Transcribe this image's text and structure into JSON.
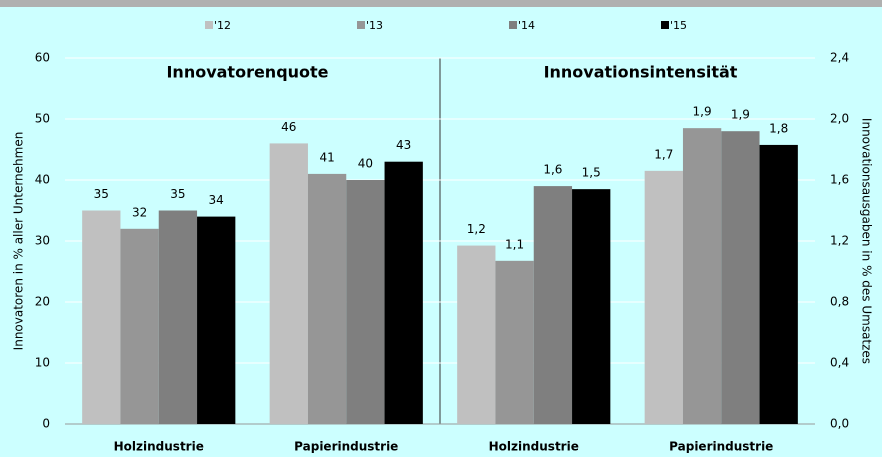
{
  "chart_data": [
    {
      "type": "bar",
      "title": "Innovatorenquote",
      "ylabel": "Innovatoren in % aller Unternehmen",
      "categories": [
        "Holzindustrie",
        "Papierindustrie"
      ],
      "ylim": [
        0,
        60
      ],
      "yticks": [
        0,
        10,
        20,
        30,
        40,
        50,
        60
      ],
      "grid": true,
      "series": [
        {
          "name": "'12",
          "color": "#c0c0c0",
          "values": [
            35,
            46
          ]
        },
        {
          "name": "'13",
          "color": "#969696",
          "values": [
            32,
            41
          ]
        },
        {
          "name": "'14",
          "color": "#7f7f7f",
          "values": [
            35,
            40
          ]
        },
        {
          "name": "'15",
          "color": "#000000",
          "values": [
            34,
            43
          ]
        }
      ]
    },
    {
      "type": "bar",
      "title": "Innovationsintensität",
      "ylabel": "Innovationsausgaben in % des Umsatzes",
      "categories": [
        "Holzindustrie",
        "Papierindustrie"
      ],
      "ylim": [
        0,
        2.4
      ],
      "yticks": [
        {
          "value": 0,
          "label": "0,0"
        },
        {
          "value": 0.4,
          "label": "0,4"
        },
        {
          "value": 0.8,
          "label": "0,8"
        },
        {
          "value": 1.2,
          "label": "1,2"
        },
        {
          "value": 1.6,
          "label": "1,6"
        },
        {
          "value": 2.0,
          "label": "2,0"
        },
        {
          "value": 2.4,
          "label": "2,4"
        }
      ],
      "grid": true,
      "series": [
        {
          "color": "#c0c0c0",
          "values": [
            1.17,
            1.66
          ],
          "value_labels": [
            "1,2",
            "1,7"
          ]
        },
        {
          "color": "#969696",
          "values": [
            1.07,
            1.94
          ],
          "value_labels": [
            "1,1",
            "1,9"
          ]
        },
        {
          "color": "#7f7f7f",
          "values": [
            1.56,
            1.92
          ],
          "value_labels": [
            "1,6",
            "1,9"
          ]
        },
        {
          "color": "#000000",
          "values": [
            1.54,
            1.83
          ],
          "value_labels": [
            "1,5",
            "1,8"
          ]
        }
      ]
    }
  ]
}
